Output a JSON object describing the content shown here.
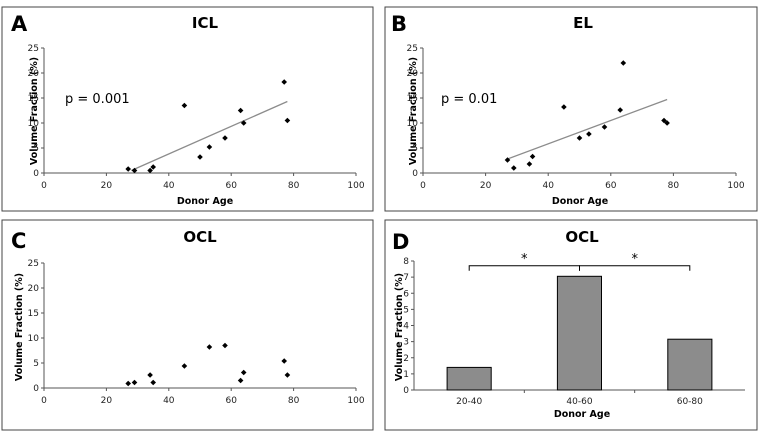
{
  "chart_data": [
    {
      "letter": "A",
      "type": "scatter",
      "title": "ICL",
      "xlabel": "Donor Age",
      "ylabel": "Volume Fraction (%)",
      "xlim": [
        0,
        100
      ],
      "ylim": [
        0,
        25
      ],
      "xticks": [
        "0",
        "20",
        "40",
        "60",
        "80",
        "100"
      ],
      "yticks": [
        "0",
        "5",
        "10",
        "15",
        "20",
        "25"
      ],
      "annotation": "p = 0.001",
      "points": [
        [
          27,
          0.8
        ],
        [
          29,
          0.5
        ],
        [
          34,
          0.5
        ],
        [
          35,
          1.2
        ],
        [
          45,
          13.5
        ],
        [
          50,
          3.2
        ],
        [
          53,
          5.2
        ],
        [
          58,
          7.0
        ],
        [
          63,
          12.5
        ],
        [
          64,
          10.0
        ],
        [
          77,
          18.2
        ],
        [
          78,
          10.5
        ]
      ],
      "trendline": [
        [
          28,
          0.5
        ],
        [
          78,
          14.3
        ]
      ]
    },
    {
      "letter": "B",
      "type": "scatter",
      "title": "EL",
      "xlabel": "Donor Age",
      "ylabel": "Volume Fraction (%)",
      "xlim": [
        0,
        100
      ],
      "ylim": [
        0,
        25
      ],
      "xticks": [
        "0",
        "20",
        "40",
        "60",
        "80",
        "100"
      ],
      "yticks": [
        "0",
        "5",
        "10",
        "15",
        "20",
        "25"
      ],
      "annotation": "p = 0.01",
      "points": [
        [
          27,
          2.6
        ],
        [
          29,
          1.0
        ],
        [
          34,
          1.8
        ],
        [
          35,
          3.3
        ],
        [
          45,
          13.2
        ],
        [
          50,
          7.0
        ],
        [
          53,
          7.8
        ],
        [
          58,
          9.2
        ],
        [
          63,
          12.6
        ],
        [
          64,
          22.0
        ],
        [
          77,
          10.5
        ],
        [
          78,
          10.0
        ]
      ],
      "trendline": [
        [
          27,
          2.8
        ],
        [
          78,
          14.7
        ]
      ]
    },
    {
      "letter": "C",
      "type": "scatter",
      "title": "OCL",
      "xlabel": "",
      "ylabel": "Volume Fraction (%)",
      "xlim": [
        0,
        100
      ],
      "ylim": [
        0,
        25
      ],
      "xticks": [
        "0",
        "20",
        "40",
        "60",
        "80",
        "100"
      ],
      "yticks": [
        "0",
        "5",
        "10",
        "15",
        "20",
        "25"
      ],
      "points": [
        [
          27,
          0.9
        ],
        [
          29,
          1.1
        ],
        [
          34,
          2.6
        ],
        [
          35,
          1.1
        ],
        [
          45,
          4.4
        ],
        [
          53,
          8.2
        ],
        [
          58,
          8.5
        ],
        [
          63,
          1.5
        ],
        [
          64,
          3.1
        ],
        [
          77,
          5.4
        ],
        [
          78,
          2.6
        ]
      ]
    },
    {
      "letter": "D",
      "type": "bar",
      "title": "OCL",
      "xlabel": "Donor Age",
      "ylabel": "Volume Fraction (%)",
      "categories": [
        "20-40",
        "40-60",
        "60-80"
      ],
      "values": [
        1.4,
        7.05,
        3.15
      ],
      "ylim": [
        0,
        8
      ],
      "yticks": [
        "0",
        "1",
        "2",
        "3",
        "4",
        "5",
        "6",
        "7",
        "8"
      ],
      "significance": [
        {
          "from": 0,
          "to": 1,
          "label": "*"
        },
        {
          "from": 1,
          "to": 2,
          "label": "*"
        }
      ]
    }
  ]
}
